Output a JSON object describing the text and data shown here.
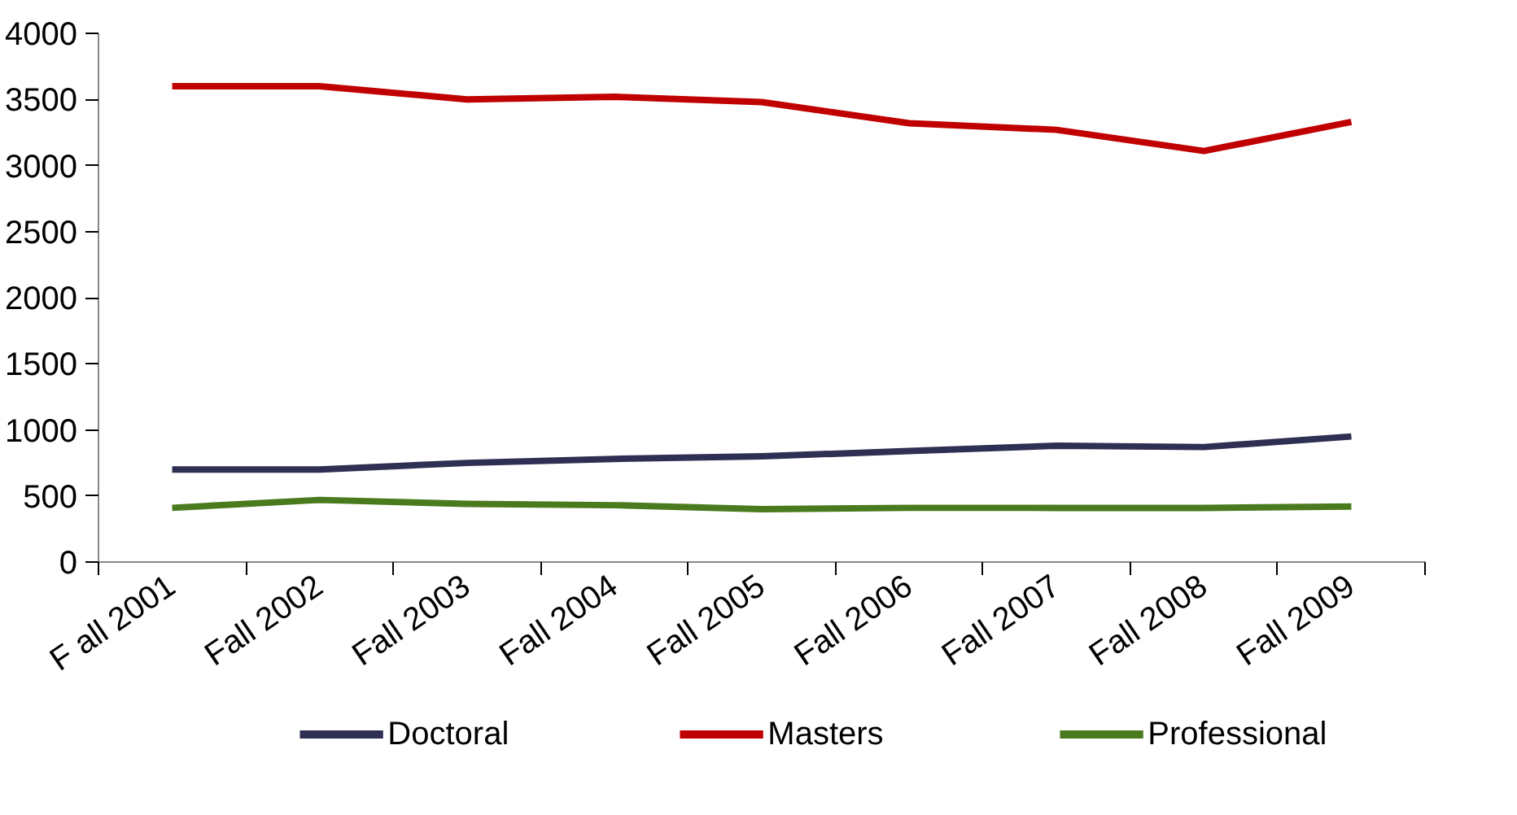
{
  "chart_data": {
    "type": "line",
    "categories": [
      "F all 2001",
      "Fall 2002",
      "Fall 2003",
      "Fall 2004",
      "Fall 2005",
      "Fall 2006",
      "Fall 2007",
      "Fall 2008",
      "Fall 2009"
    ],
    "series": [
      {
        "name": "Doctoral",
        "color": "#2e2f52",
        "values": [
          700,
          700,
          750,
          780,
          800,
          840,
          880,
          870,
          950
        ]
      },
      {
        "name": "Masters",
        "color": "#c00000",
        "values": [
          3600,
          3600,
          3500,
          3520,
          3480,
          3320,
          3270,
          3110,
          3330
        ]
      },
      {
        "name": "Professional",
        "color": "#4a7a1e",
        "values": [
          410,
          470,
          440,
          430,
          400,
          410,
          410,
          410,
          420
        ]
      }
    ],
    "ylim": [
      0,
      4000
    ],
    "yticks": [
      0,
      500,
      1000,
      1500,
      2000,
      2500,
      3000,
      3500,
      4000
    ],
    "grid": false,
    "legend": "bottom",
    "marker": "none",
    "line_style": "solid"
  }
}
